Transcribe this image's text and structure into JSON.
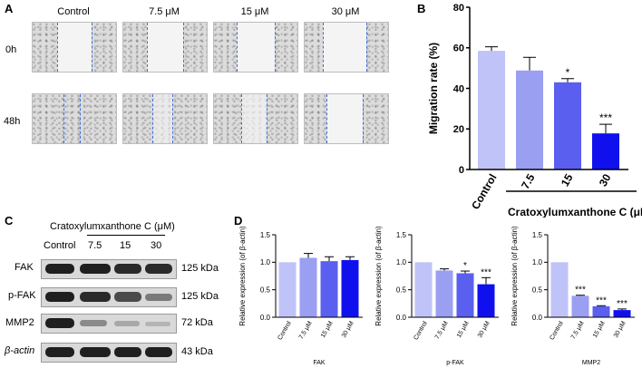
{
  "panels": {
    "a": "A",
    "b": "B",
    "c": "C",
    "d": "D"
  },
  "panel_a": {
    "columns": [
      "Control",
      "7.5 μM",
      "15 μM",
      "30 μM"
    ],
    "rows": [
      "0h",
      "48h"
    ]
  },
  "panel_c": {
    "header": "Cratoxylumxanthone C (μM)",
    "lanes": [
      "Control",
      "7.5",
      "15",
      "30"
    ],
    "rows": [
      {
        "name": "FAK",
        "kda": "125 kDa"
      },
      {
        "name": "p-FAK",
        "kda": "125 kDa"
      },
      {
        "name": "MMP2",
        "kda": "72 kDa"
      },
      {
        "name": "β-actin",
        "kda": "43 kDa"
      }
    ]
  },
  "colors": {
    "c0": "#c0c3f8",
    "c1": "#9a9ff2",
    "c2": "#5a5ff0",
    "c3": "#1010ee"
  },
  "chart_data": [
    {
      "id": "B",
      "type": "bar",
      "ylabel": "Migration rate (%)",
      "xlabel": "Cratoxylumxanthone C (μM)",
      "categories": [
        "Control",
        "7.5",
        "15",
        "30"
      ],
      "values": [
        58.5,
        48.8,
        43.0,
        17.8
      ],
      "errors": [
        2.0,
        6.5,
        1.8,
        4.5
      ],
      "significance": [
        "",
        "",
        "*",
        "***"
      ],
      "ylim": [
        0,
        80
      ],
      "yticks": [
        "0",
        "20",
        "40",
        "60",
        "80"
      ]
    },
    {
      "id": "D1",
      "type": "bar",
      "ylabel": "Relative expression (of β-actin)",
      "xlabel": "FAK",
      "categories": [
        "Control",
        "7.5 μM",
        "15 μM",
        "30 μM"
      ],
      "values": [
        1.0,
        1.08,
        1.02,
        1.04
      ],
      "errors": [
        0.0,
        0.08,
        0.08,
        0.06
      ],
      "significance": [
        "",
        "",
        "",
        ""
      ],
      "ylim": [
        0,
        1.5
      ],
      "yticks": [
        "0.0",
        "0.5",
        "1.0",
        "1.5"
      ]
    },
    {
      "id": "D2",
      "type": "bar",
      "ylabel": "Relative expression (of β-actin)",
      "xlabel": "p-FAK",
      "categories": [
        "Control",
        "7.5 μM",
        "15 μM",
        "30 μM"
      ],
      "values": [
        1.0,
        0.85,
        0.8,
        0.6
      ],
      "errors": [
        0.0,
        0.03,
        0.04,
        0.12
      ],
      "significance": [
        "",
        "",
        "*",
        "***"
      ],
      "ylim": [
        0,
        1.5
      ],
      "yticks": [
        "0.0",
        "0.5",
        "1.0",
        "1.5"
      ]
    },
    {
      "id": "D3",
      "type": "bar",
      "ylabel": "Relative expression (of β-actin)",
      "xlabel": "MMP2",
      "categories": [
        "Control",
        "7.5 μM",
        "15 μM",
        "30 μM"
      ],
      "values": [
        1.0,
        0.39,
        0.2,
        0.13
      ],
      "errors": [
        0.0,
        0.01,
        0.01,
        0.02
      ],
      "significance": [
        "",
        "***",
        "***",
        "***"
      ],
      "ylim": [
        0,
        1.5
      ],
      "yticks": [
        "0.0",
        "0.5",
        "1.0",
        "1.5"
      ]
    }
  ]
}
